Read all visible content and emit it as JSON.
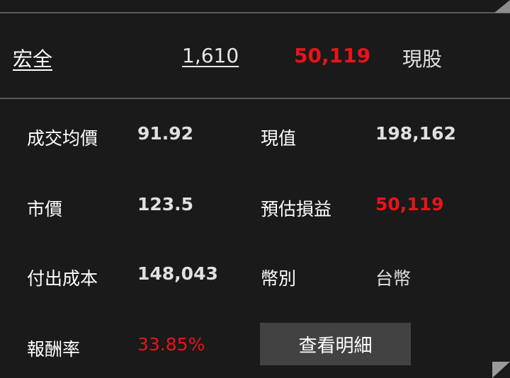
{
  "header": {
    "stock_name": "宏全",
    "quantity": "1,610",
    "profit_loss": "50,119",
    "trade_type": "現股"
  },
  "details": {
    "avg_price_label": "成交均價",
    "avg_price": "91.92",
    "current_value_label": "現值",
    "current_value": "198,162",
    "market_price_label": "市價",
    "market_price": "123.5",
    "est_pl_label": "預估損益",
    "est_pl": "50,119",
    "cost_label": "付出成本",
    "cost": "148,043",
    "currency_label": "幣別",
    "currency": "台幣",
    "return_label": "報酬率",
    "return_rate": "33.85%"
  },
  "view_details_button": "查看明細",
  "colors": {
    "positive": "#e8141a",
    "background": "#1a1a1a",
    "button": "#424242"
  }
}
